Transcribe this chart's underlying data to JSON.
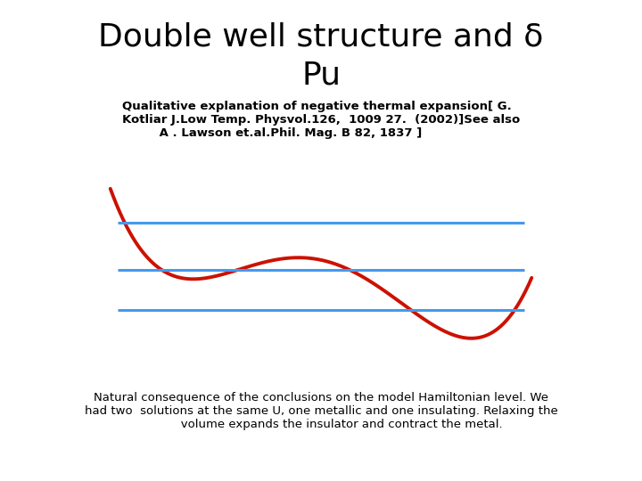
{
  "title_line1": "Double well structure and δ",
  "title_line2": "Pu",
  "subtitle": "Qualitative explanation of negative thermal expansion[ G.\nKotliar J.Low Temp. Physvol.126,  1009 27.  (2002)]See also\n         A . Lawson et.al.Phil. Mag. B 82, 1837 ]",
  "footer": "Natural consequence of the conclusions on the model Hamiltonian level. We\nhad two  solutions at the same U, one metallic and one insulating. Relaxing the\n           volume expands the insulator and contract the metal.",
  "curve_color": "#cc1100",
  "line_color": "#4499ee",
  "background_color": "#ffffff",
  "title_fontsize": 26,
  "subtitle_fontsize": 9.5,
  "footer_fontsize": 9.5,
  "curve_linewidth": 2.8,
  "line_linewidth": 2.2
}
